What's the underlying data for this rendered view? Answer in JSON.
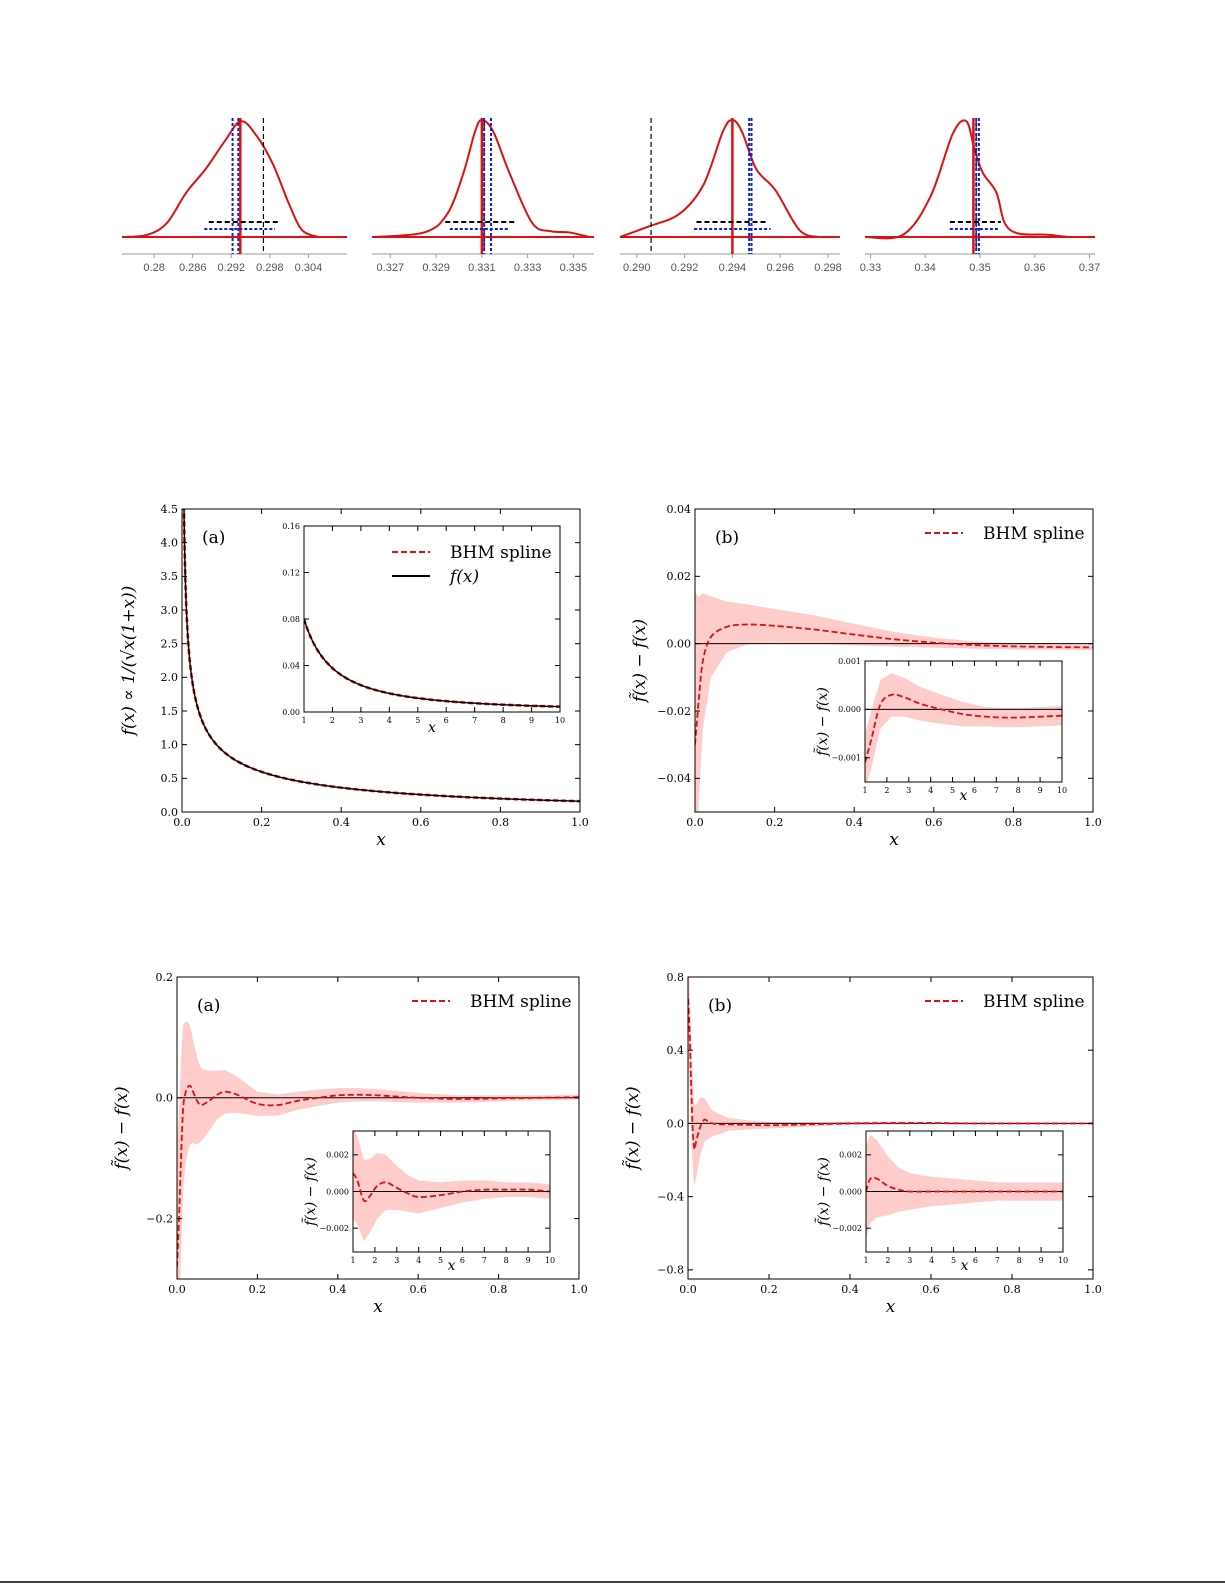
{
  "colors": {
    "red": "#dd1111",
    "band": "#ffcccc",
    "blue": "#1122cc",
    "black": "#000000",
    "axis_gray": "#999999"
  },
  "chart_data": [
    {
      "type": "line",
      "role": "posterior-density",
      "xticks": [
        "0.28",
        "0.286",
        "0.292",
        "0.298",
        "0.304"
      ],
      "xlim": [
        0.275,
        0.31
      ],
      "series": [
        {
          "x": [
            0.2755,
            0.279,
            0.282,
            0.285,
            0.288,
            0.291,
            0.2935,
            0.296,
            0.2985,
            0.301,
            0.303,
            0.3055
          ],
          "y": [
            0.0,
            0.02,
            0.12,
            0.38,
            0.58,
            0.82,
            0.99,
            0.86,
            0.62,
            0.28,
            0.06,
            0.0
          ]
        }
      ],
      "red_solid_line": 0.2934,
      "blue_dotted_lines": [
        0.2922,
        0.2931
      ],
      "black_dashed_line": 0.297,
      "black_dashed_interval": [
        0.2885,
        0.2995
      ],
      "blue_dotted_interval": [
        0.2878,
        0.2988
      ]
    },
    {
      "type": "line",
      "role": "posterior-density",
      "xticks": [
        "0.327",
        "0.329",
        "0.331",
        "0.333",
        "0.335"
      ],
      "xlim": [
        0.3262,
        0.3359
      ],
      "series": [
        {
          "x": [
            0.3263,
            0.3285,
            0.3295,
            0.3302,
            0.3307,
            0.331,
            0.3315,
            0.3322,
            0.3332,
            0.334,
            0.3348,
            0.3357
          ],
          "y": [
            0.0,
            0.04,
            0.2,
            0.55,
            0.9,
            1.0,
            0.9,
            0.55,
            0.12,
            0.05,
            0.04,
            0.0
          ]
        }
      ],
      "red_solid_line": 0.331,
      "blue_dotted_lines": [
        0.3311,
        0.3314
      ],
      "black_dashed_line": 0.3311,
      "black_dashed_interval": [
        0.3294,
        0.3325
      ],
      "blue_dotted_interval": [
        0.3296,
        0.3322
      ]
    },
    {
      "type": "line",
      "role": "posterior-density",
      "xticks": [
        "0.290",
        "0.292",
        "0.294",
        "0.296",
        "0.298"
      ],
      "xlim": [
        0.2893,
        0.2985
      ],
      "series": [
        {
          "x": [
            0.2893,
            0.2905,
            0.2918,
            0.2928,
            0.2936,
            0.294,
            0.2944,
            0.295,
            0.2958,
            0.2968,
            0.2976
          ],
          "y": [
            0.0,
            0.09,
            0.2,
            0.45,
            0.9,
            1.0,
            0.9,
            0.58,
            0.4,
            0.06,
            0.0
          ]
        }
      ],
      "red_solid_line": 0.294,
      "blue_dotted_lines": [
        0.2947,
        0.2948
      ],
      "black_dashed_line": 0.2906,
      "black_dashed_interval": [
        0.2925,
        0.2955
      ],
      "blue_dotted_interval": [
        0.2924,
        0.2956
      ]
    },
    {
      "type": "line",
      "role": "posterior-density",
      "xticks": [
        "0.33",
        "0.34",
        "0.35",
        "0.36",
        "0.37"
      ],
      "xlim": [
        0.329,
        0.371
      ],
      "series": [
        {
          "x": [
            0.329,
            0.336,
            0.341,
            0.345,
            0.3475,
            0.349,
            0.3505,
            0.353,
            0.3545,
            0.357,
            0.362,
            0.366
          ],
          "y": [
            0.0,
            0.02,
            0.35,
            0.88,
            0.99,
            0.75,
            0.55,
            0.38,
            0.12,
            0.03,
            0.02,
            0.0
          ]
        }
      ],
      "red_solid_line": 0.3488,
      "blue_dotted_lines": [
        0.3493,
        0.3498
      ],
      "black_dashed_line": 0.3493,
      "black_dashed_interval": [
        0.3445,
        0.3538
      ],
      "blue_dotted_interval": [
        0.3445,
        0.3535
      ]
    },
    {
      "type": "line",
      "panel_label": "(a)",
      "xlabel": "x",
      "ylabel": "f(x) ∝ 1/(√x(1+x))",
      "xlim": [
        0,
        1
      ],
      "ylim": [
        0,
        4.5
      ],
      "xticks": [
        "0.0",
        "0.2",
        "0.4",
        "0.6",
        "0.8",
        "1.0"
      ],
      "yticks": [
        "0.0",
        "0.5",
        "1.0",
        "1.5",
        "2.0",
        "2.5",
        "3.0",
        "3.5",
        "4.0",
        "4.5"
      ],
      "legend": [
        "BHM spline",
        "f(x)"
      ],
      "function": "1/(sqrt(x)(1+x)) scaled",
      "inset": {
        "xlabel": "x",
        "xlim": [
          1,
          10
        ],
        "ylim": [
          0,
          0.16
        ],
        "xticks": [
          "1",
          "2",
          "3",
          "4",
          "5",
          "6",
          "7",
          "8",
          "9",
          "10"
        ],
        "yticks": [
          "0.00",
          "0.04",
          "0.08",
          "0.12",
          "0.16"
        ]
      }
    },
    {
      "type": "line",
      "panel_label": "(b)",
      "ylabel": "f̃(x) − f(x)",
      "xlabel": "x",
      "xlim": [
        0,
        1
      ],
      "ylim": [
        -0.05,
        0.04
      ],
      "xticks": [
        "0.0",
        "0.2",
        "0.4",
        "0.6",
        "0.8",
        "1.0"
      ],
      "yticks": [
        "−0.04",
        "−0.02",
        "0.00",
        "0.02",
        "0.04"
      ],
      "legend": [
        "BHM spline"
      ],
      "series": [
        {
          "x": [
            0.0,
            0.01,
            0.02,
            0.04,
            0.08,
            0.13,
            0.2,
            0.3,
            0.4,
            0.5,
            0.6,
            0.7,
            0.8,
            0.9,
            1.0
          ],
          "y": [
            -0.03,
            -0.016,
            -0.005,
            0.002,
            0.005,
            0.0057,
            0.0053,
            0.0042,
            0.0027,
            0.0013,
            0.0003,
            -0.0004,
            -0.0008,
            -0.001,
            -0.0011
          ]
        }
      ],
      "band_halfwidth": [
        {
          "x": [
            0.0,
            0.01,
            0.02,
            0.04,
            0.08,
            0.13,
            0.2,
            0.3,
            0.4,
            0.5,
            0.6,
            0.7,
            0.8,
            0.9,
            1.0
          ],
          "w": [
            0.045,
            0.03,
            0.02,
            0.012,
            0.0075,
            0.006,
            0.005,
            0.0042,
            0.0032,
            0.0022,
            0.0015,
            0.0011,
            0.0009,
            0.0008,
            0.0008
          ]
        }
      ],
      "inset": {
        "ylabel": "f̃(x) − f(x)",
        "xlabel": "x",
        "xlim": [
          1,
          10
        ],
        "ylim": [
          -0.0015,
          0.001
        ],
        "xticks": [
          "1",
          "2",
          "3",
          "4",
          "5",
          "6",
          "7",
          "8",
          "9",
          "10"
        ],
        "yticks": [
          "−0.001",
          "0.000",
          "0.001"
        ],
        "series": [
          {
            "x": [
              1,
              1.3,
              1.7,
              2.2,
              2.8,
              3.5,
              4.5,
              5.5,
              6.5,
              7.5,
              8.5,
              9.5,
              10
            ],
            "y": [
              -0.0011,
              -0.0006,
              0.0001,
              0.0003,
              0.00025,
              0.00012,
              0.0,
              -0.0001,
              -0.00015,
              -0.00017,
              -0.00016,
              -0.00014,
              -0.00013
            ]
          }
        ],
        "band_halfwidth": [
          0.0006,
          0.0006,
          0.0005,
          0.00045,
          0.0004,
          0.00035,
          0.0003,
          0.00025,
          0.0002,
          0.0002,
          0.0002,
          0.0002,
          0.0002
        ]
      }
    },
    {
      "type": "line",
      "panel_label": "(a)",
      "ylabel": "f̃(x) − f(x)",
      "xlabel": "x",
      "xlim": [
        0,
        1
      ],
      "ylim": [
        -0.3,
        0.2
      ],
      "xticks": [
        "0.0",
        "0.2",
        "0.4",
        "0.6",
        "0.8",
        "1.0"
      ],
      "yticks": [
        "−0.2",
        "0.0",
        "0.2"
      ],
      "legend": [
        "BHM spline"
      ],
      "series": [
        {
          "x": [
            0.0,
            0.005,
            0.01,
            0.015,
            0.02,
            0.025,
            0.03,
            0.035,
            0.04,
            0.05,
            0.06,
            0.08,
            0.1,
            0.12,
            0.15,
            0.2,
            0.25,
            0.3,
            0.35,
            0.4,
            0.45,
            0.5,
            0.55,
            0.6,
            0.7,
            0.8,
            0.9,
            1.0
          ],
          "y": [
            -0.28,
            -0.2,
            -0.1,
            -0.02,
            0.005,
            0.015,
            0.02,
            0.018,
            0.01,
            -0.005,
            -0.012,
            -0.005,
            0.005,
            0.01,
            0.005,
            -0.01,
            -0.012,
            -0.005,
            0.0,
            0.004,
            0.005,
            0.004,
            0.002,
            0.0,
            -0.002,
            -0.001,
            0.0,
            0.001
          ]
        }
      ],
      "band_halfwidth": [
        {
          "x": [
            0.0,
            0.01,
            0.02,
            0.04,
            0.06,
            0.1,
            0.15,
            0.2,
            0.3,
            0.4,
            0.5,
            0.6,
            0.7,
            0.8,
            0.9,
            1.0
          ],
          "w": [
            0.2,
            0.16,
            0.12,
            0.085,
            0.06,
            0.04,
            0.03,
            0.02,
            0.015,
            0.012,
            0.01,
            0.008,
            0.006,
            0.005,
            0.004,
            0.004
          ]
        }
      ],
      "inset": {
        "ylabel": "f̃(x) − f(x)",
        "xlabel": "x",
        "xlim": [
          1,
          10
        ],
        "ylim": [
          -0.0033,
          0.0033
        ],
        "xticks": [
          "1",
          "2",
          "3",
          "4",
          "5",
          "6",
          "7",
          "8",
          "9",
          "10"
        ],
        "yticks": [
          "−0.002",
          "0.000",
          "0.002"
        ],
        "series": [
          {
            "x": [
              1,
              1.2,
              1.5,
              1.8,
              2.1,
              2.5,
              3,
              3.5,
              4,
              5,
              6,
              7,
              8,
              9,
              10
            ],
            "y": [
              0.001,
              0.0006,
              -0.0005,
              -0.0002,
              0.0003,
              0.0005,
              0.0002,
              -0.0001,
              -0.0003,
              -0.0002,
              0.0,
              0.0001,
              0.0001,
              0.0001,
              0.0
            ]
          }
        ],
        "band_halfwidth": [
          0.0025,
          0.0024,
          0.0022,
          0.002,
          0.0018,
          0.0015,
          0.0012,
          0.001,
          0.0009,
          0.0007,
          0.0006,
          0.0005,
          0.0004,
          0.0004,
          0.0004
        ]
      }
    },
    {
      "type": "line",
      "panel_label": "(b)",
      "ylabel": "f̃(x) − f(x)",
      "xlabel": "x",
      "xlim": [
        0,
        1
      ],
      "ylim": [
        -0.85,
        0.8
      ],
      "xticks": [
        "0.0",
        "0.2",
        "0.4",
        "0.6",
        "0.8",
        "1.0"
      ],
      "yticks": [
        "−0.8",
        "−0.4",
        "0.0",
        "0.4",
        "0.8"
      ],
      "legend": [
        "BHM spline"
      ],
      "series": [
        {
          "x": [
            0.0,
            0.004,
            0.008,
            0.012,
            0.016,
            0.02,
            0.03,
            0.04,
            0.05,
            0.06,
            0.08,
            0.1,
            0.15,
            0.2,
            0.3,
            0.4,
            0.5,
            0.6,
            0.7,
            0.8,
            0.9,
            1.0
          ],
          "y": [
            0.68,
            0.5,
            0.2,
            -0.05,
            -0.14,
            -0.1,
            -0.02,
            0.02,
            0.01,
            0.0,
            -0.005,
            -0.005,
            -0.008,
            -0.01,
            -0.005,
            0.0,
            0.002,
            0.002,
            0.0,
            0.0,
            0.0,
            0.0
          ]
        }
      ],
      "band_halfwidth": [
        {
          "x": [
            0.0,
            0.01,
            0.02,
            0.04,
            0.06,
            0.1,
            0.15,
            0.2,
            0.3,
            0.5,
            0.7,
            1.0
          ],
          "w": [
            0.28,
            0.24,
            0.2,
            0.12,
            0.07,
            0.035,
            0.025,
            0.018,
            0.012,
            0.008,
            0.006,
            0.005
          ]
        }
      ],
      "inset": {
        "ylabel": "f̃(x) − f(x)",
        "xlabel": "x",
        "xlim": [
          1,
          10
        ],
        "ylim": [
          -0.0033,
          0.0033
        ],
        "xticks": [
          "1",
          "2",
          "3",
          "4",
          "5",
          "6",
          "7",
          "8",
          "9",
          "10"
        ],
        "yticks": [
          "−0.002",
          "0.000",
          "0.002"
        ],
        "series": [
          {
            "x": [
              1,
              1.2,
              1.5,
              2,
              2.5,
              3,
              4,
              5,
              6,
              7,
              8,
              9,
              10
            ],
            "y": [
              0.0,
              0.0007,
              0.0007,
              0.0003,
              0.0001,
              0.0,
              0.0,
              0.0,
              0.0,
              0.0,
              0.0,
              0.0,
              0.0
            ]
          }
        ],
        "band_halfwidth": [
          0.0025,
          0.0024,
          0.0021,
          0.0016,
          0.0012,
          0.001,
          0.0008,
          0.0007,
          0.0006,
          0.0005,
          0.0005,
          0.0005,
          0.0005
        ]
      }
    }
  ]
}
